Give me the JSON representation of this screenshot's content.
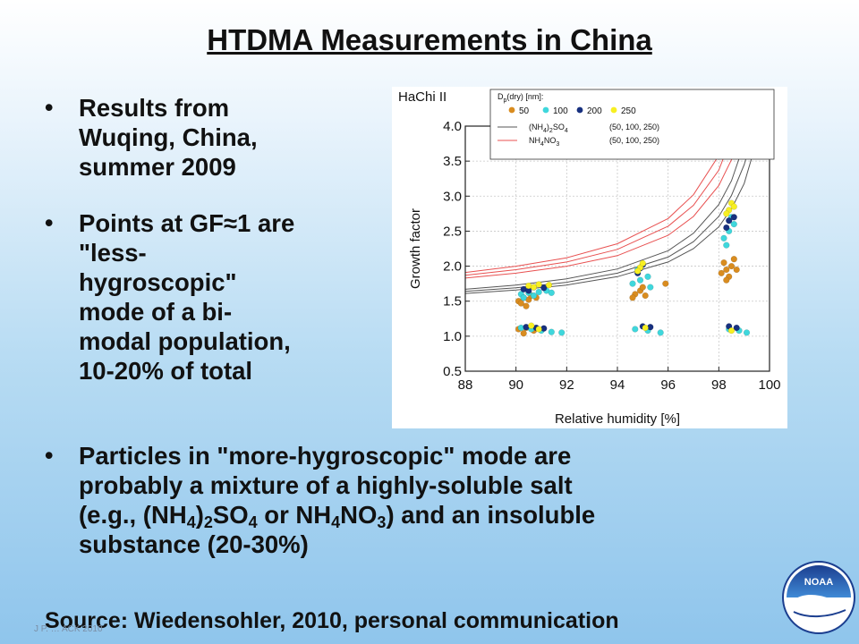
{
  "title": "HTDMA Measurements in China",
  "bullets": [
    {
      "lines": [
        "Results from",
        "Wuqing, China,",
        "summer 2009"
      ]
    },
    {
      "lines": [
        "Points at GF≈1 are",
        "\"less-",
        "hygroscopic\"",
        "mode of a bi-",
        "modal population,",
        "10-20% of total"
      ]
    }
  ],
  "bullet3": {
    "line1": "Particles in \"more-hygroscopic\" mode are",
    "line2": "probably a mixture of a highly-soluble salt",
    "line3": {
      "t1": "(e.g., (NH",
      "s1": "4",
      "t2": ")",
      "s2": "2",
      "t3": "SO",
      "s3": "4",
      "t4": " or NH",
      "s4": "4",
      "t5": "NO",
      "s5": "3",
      "t6": ") and an insoluble"
    },
    "line4": "substance (20-30%)"
  },
  "source": "Source:  Wiedensohler, 2010, personal communication",
  "footer_tiny": "J P. … ACK 2010",
  "logo": {
    "text": "NOAA",
    "icon": "noaa-logo"
  },
  "colors": {
    "d50": "#d98c1f",
    "d100": "#3fd7dc",
    "d200": "#17307f",
    "d250": "#f7ef22",
    "ammsulf": "#555555",
    "ammnit": "#e85050"
  },
  "chart_data": {
    "type": "scatter",
    "panel_label": "HaChi II",
    "xlabel": "Relative humidity [%]",
    "ylabel": "Growth factor",
    "xlim": [
      88,
      100
    ],
    "ylim": [
      0.5,
      4.0
    ],
    "xticks": [
      88,
      90,
      92,
      94,
      96,
      98,
      100
    ],
    "yticks": [
      0.5,
      1.0,
      1.5,
      2.0,
      2.5,
      3.0,
      3.5,
      4.0
    ],
    "grid": "dotted",
    "legend": {
      "position": "top",
      "title_main": "D",
      "title_sub": "p",
      "title_rest": "(dry) [nm]:",
      "points": [
        "50",
        "100",
        "200",
        "250"
      ],
      "lines": [
        {
          "t1": "(NH",
          "s1": "4",
          "t2": ")",
          "s2": "2",
          "t3": "SO",
          "s3": "4",
          "sizes": "(50, 100, 250)"
        },
        {
          "t1": "NH",
          "s1": "4",
          "t2": "NO",
          "s2": "3",
          "t3": "",
          "s3": "",
          "sizes": "(50, 100, 250)"
        }
      ]
    },
    "point_series": [
      {
        "dp": 50,
        "color": "#d98c1f",
        "points": [
          [
            90.1,
            1.5
          ],
          [
            90.3,
            1.55
          ],
          [
            90.5,
            1.52
          ],
          [
            90.2,
            1.47
          ],
          [
            90.6,
            1.58
          ],
          [
            90.4,
            1.43
          ],
          [
            90.8,
            1.55
          ],
          [
            90.1,
            1.1
          ],
          [
            90.4,
            1.12
          ],
          [
            90.7,
            1.08
          ],
          [
            90.3,
            1.04
          ],
          [
            94.7,
            1.6
          ],
          [
            94.9,
            1.65
          ],
          [
            95.1,
            1.58
          ],
          [
            94.6,
            1.55
          ],
          [
            95.0,
            1.7
          ],
          [
            95.9,
            1.75
          ],
          [
            98.1,
            1.9
          ],
          [
            98.3,
            1.95
          ],
          [
            98.5,
            2.0
          ],
          [
            98.2,
            2.05
          ],
          [
            98.6,
            2.1
          ],
          [
            98.4,
            1.85
          ],
          [
            98.3,
            1.8
          ],
          [
            98.7,
            1.95
          ]
        ]
      },
      {
        "dp": 100,
        "color": "#3fd7dc",
        "points": [
          [
            90.2,
            1.6
          ],
          [
            90.5,
            1.62
          ],
          [
            90.9,
            1.63
          ],
          [
            91.2,
            1.65
          ],
          [
            90.3,
            1.55
          ],
          [
            90.7,
            1.58
          ],
          [
            91.4,
            1.62
          ],
          [
            90.2,
            1.12
          ],
          [
            90.6,
            1.1
          ],
          [
            91.0,
            1.08
          ],
          [
            91.4,
            1.06
          ],
          [
            91.8,
            1.05
          ],
          [
            94.6,
            1.75
          ],
          [
            94.9,
            1.8
          ],
          [
            95.2,
            1.85
          ],
          [
            94.8,
            1.95
          ],
          [
            95.3,
            1.7
          ],
          [
            94.7,
            1.1
          ],
          [
            95.2,
            1.08
          ],
          [
            95.7,
            1.05
          ],
          [
            98.2,
            2.4
          ],
          [
            98.4,
            2.5
          ],
          [
            98.6,
            2.6
          ],
          [
            98.3,
            2.3
          ],
          [
            98.5,
            2.7
          ],
          [
            98.4,
            1.1
          ],
          [
            98.8,
            1.08
          ],
          [
            99.1,
            1.05
          ]
        ]
      },
      {
        "dp": 200,
        "color": "#17307f",
        "points": [
          [
            90.3,
            1.67
          ],
          [
            90.7,
            1.7
          ],
          [
            91.1,
            1.69
          ],
          [
            90.5,
            1.65
          ],
          [
            90.4,
            1.13
          ],
          [
            90.8,
            1.12
          ],
          [
            91.1,
            1.11
          ],
          [
            94.8,
            1.9
          ],
          [
            95.0,
            2.02
          ],
          [
            94.9,
            1.97
          ],
          [
            95.0,
            1.14
          ],
          [
            95.3,
            1.13
          ],
          [
            98.3,
            2.55
          ],
          [
            98.4,
            2.65
          ],
          [
            98.6,
            2.7
          ],
          [
            98.4,
            1.14
          ],
          [
            98.7,
            1.12
          ]
        ]
      },
      {
        "dp": 250,
        "color": "#f7ef22",
        "points": [
          [
            90.5,
            1.72
          ],
          [
            90.9,
            1.74
          ],
          [
            91.3,
            1.73
          ],
          [
            90.7,
            1.7
          ],
          [
            90.6,
            1.15
          ],
          [
            90.9,
            1.1
          ],
          [
            94.9,
            1.98
          ],
          [
            95.0,
            2.04
          ],
          [
            94.8,
            1.93
          ],
          [
            95.1,
            1.12
          ],
          [
            98.4,
            2.8
          ],
          [
            98.5,
            2.9
          ],
          [
            98.6,
            2.85
          ],
          [
            98.3,
            2.75
          ],
          [
            98.5,
            1.08
          ]
        ]
      }
    ],
    "curves": [
      {
        "kind": "(NH4)2SO4",
        "color": "#555555",
        "points": [
          [
            88,
            1.61
          ],
          [
            90,
            1.66
          ],
          [
            92,
            1.73
          ],
          [
            94,
            1.85
          ],
          [
            96,
            2.06
          ],
          [
            97,
            2.25
          ],
          [
            98,
            2.56
          ],
          [
            98.5,
            2.82
          ],
          [
            99,
            3.18
          ],
          [
            99.3,
            3.55
          ],
          [
            99.5,
            4.0
          ]
        ]
      },
      {
        "kind": "(NH4)2SO4",
        "color": "#555555",
        "points": [
          [
            88,
            1.64
          ],
          [
            90,
            1.69
          ],
          [
            92,
            1.77
          ],
          [
            94,
            1.9
          ],
          [
            96,
            2.13
          ],
          [
            97,
            2.35
          ],
          [
            98,
            2.71
          ],
          [
            98.5,
            3.01
          ],
          [
            99,
            3.45
          ],
          [
            99.3,
            3.82
          ],
          [
            99.4,
            4.0
          ]
        ]
      },
      {
        "kind": "(NH4)2SO4",
        "color": "#555555",
        "points": [
          [
            88,
            1.67
          ],
          [
            90,
            1.73
          ],
          [
            92,
            1.82
          ],
          [
            94,
            1.96
          ],
          [
            96,
            2.22
          ],
          [
            97,
            2.47
          ],
          [
            98,
            2.88
          ],
          [
            98.5,
            3.22
          ],
          [
            99,
            3.75
          ],
          [
            99.2,
            4.0
          ]
        ]
      },
      {
        "kind": "NH4NO3",
        "color": "#e85050",
        "points": [
          [
            88,
            1.83
          ],
          [
            90,
            1.9
          ],
          [
            92,
            2.0
          ],
          [
            94,
            2.15
          ],
          [
            96,
            2.44
          ],
          [
            97,
            2.71
          ],
          [
            98,
            3.15
          ],
          [
            98.5,
            3.52
          ],
          [
            98.9,
            4.0
          ]
        ]
      },
      {
        "kind": "NH4NO3",
        "color": "#e85050",
        "points": [
          [
            88,
            1.87
          ],
          [
            90,
            1.95
          ],
          [
            92,
            2.06
          ],
          [
            94,
            2.24
          ],
          [
            96,
            2.57
          ],
          [
            97,
            2.87
          ],
          [
            98,
            3.37
          ],
          [
            98.4,
            3.75
          ],
          [
            98.65,
            4.0
          ]
        ]
      },
      {
        "kind": "NH4NO3",
        "color": "#e85050",
        "points": [
          [
            88,
            1.91
          ],
          [
            90,
            2.0
          ],
          [
            92,
            2.12
          ],
          [
            94,
            2.32
          ],
          [
            96,
            2.68
          ],
          [
            97,
            3.02
          ],
          [
            98,
            3.58
          ],
          [
            98.3,
            3.85
          ],
          [
            98.45,
            4.0
          ]
        ]
      }
    ]
  }
}
